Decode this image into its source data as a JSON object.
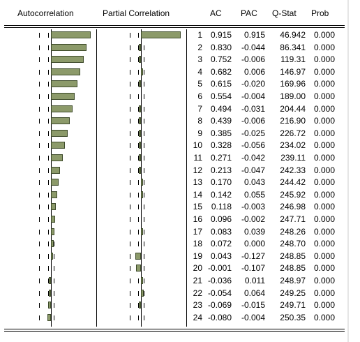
{
  "headers": {
    "autocorrelation": "Autocorrelation",
    "partial_correlation": "Partial Correlation",
    "ac": "AC",
    "pac": "PAC",
    "q_stat": "Q-Stat",
    "prob": "Prob"
  },
  "bands": {
    "ac": 0.062,
    "pac": 0.062
  },
  "colors": {
    "bar_fill": "#8c9a6a",
    "bar_border": "#3d4a2a",
    "text": "#000000"
  },
  "rows": [
    {
      "lag": "1",
      "ac": "0.915",
      "pac": "0.915",
      "q_stat": "46.942",
      "prob": "0.000"
    },
    {
      "lag": "2",
      "ac": "0.830",
      "pac": "-0.044",
      "q_stat": "86.341",
      "prob": "0.000"
    },
    {
      "lag": "3",
      "ac": "0.752",
      "pac": "-0.006",
      "q_stat": "119.31",
      "prob": "0.000"
    },
    {
      "lag": "4",
      "ac": "0.682",
      "pac": "0.006",
      "q_stat": "146.97",
      "prob": "0.000"
    },
    {
      "lag": "5",
      "ac": "0.615",
      "pac": "-0.020",
      "q_stat": "169.96",
      "prob": "0.000"
    },
    {
      "lag": "6",
      "ac": "0.554",
      "pac": "-0.004",
      "q_stat": "189.00",
      "prob": "0.000"
    },
    {
      "lag": "7",
      "ac": "0.494",
      "pac": "-0.031",
      "q_stat": "204.44",
      "prob": "0.000"
    },
    {
      "lag": "8",
      "ac": "0.439",
      "pac": "-0.006",
      "q_stat": "216.90",
      "prob": "0.000"
    },
    {
      "lag": "9",
      "ac": "0.385",
      "pac": "-0.025",
      "q_stat": "226.72",
      "prob": "0.000"
    },
    {
      "lag": "10",
      "ac": "0.328",
      "pac": "-0.056",
      "q_stat": "234.02",
      "prob": "0.000"
    },
    {
      "lag": "11",
      "ac": "0.271",
      "pac": "-0.042",
      "q_stat": "239.11",
      "prob": "0.000"
    },
    {
      "lag": "12",
      "ac": "0.213",
      "pac": "-0.047",
      "q_stat": "242.33",
      "prob": "0.000"
    },
    {
      "lag": "13",
      "ac": "0.170",
      "pac": "0.043",
      "q_stat": "244.42",
      "prob": "0.000"
    },
    {
      "lag": "14",
      "ac": "0.142",
      "pac": "0.055",
      "q_stat": "245.92",
      "prob": "0.000"
    },
    {
      "lag": "15",
      "ac": "0.118",
      "pac": "-0.003",
      "q_stat": "246.98",
      "prob": "0.000"
    },
    {
      "lag": "16",
      "ac": "0.096",
      "pac": "-0.002",
      "q_stat": "247.71",
      "prob": "0.000"
    },
    {
      "lag": "17",
      "ac": "0.083",
      "pac": "0.039",
      "q_stat": "248.26",
      "prob": "0.000"
    },
    {
      "lag": "18",
      "ac": "0.072",
      "pac": "0.000",
      "q_stat": "248.70",
      "prob": "0.000"
    },
    {
      "lag": "19",
      "ac": "0.043",
      "pac": "-0.127",
      "q_stat": "248.85",
      "prob": "0.000"
    },
    {
      "lag": "20",
      "ac": "-0.001",
      "pac": "-0.107",
      "q_stat": "248.85",
      "prob": "0.000"
    },
    {
      "lag": "21",
      "ac": "-0.036",
      "pac": "0.011",
      "q_stat": "248.97",
      "prob": "0.000"
    },
    {
      "lag": "22",
      "ac": "-0.054",
      "pac": "0.064",
      "q_stat": "249.25",
      "prob": "0.000"
    },
    {
      "lag": "23",
      "ac": "-0.069",
      "pac": "-0.015",
      "q_stat": "249.71",
      "prob": "0.000"
    },
    {
      "lag": "24",
      "ac": "-0.080",
      "pac": "-0.004",
      "q_stat": "250.35",
      "prob": "0.000"
    }
  ]
}
